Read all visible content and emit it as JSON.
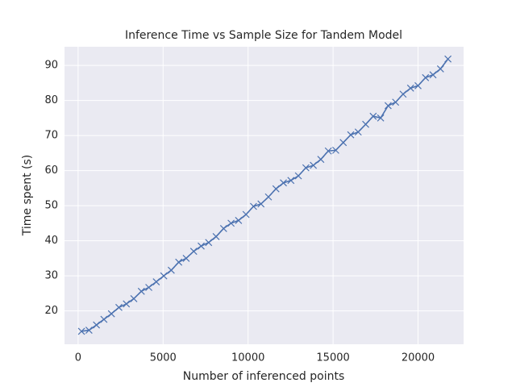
{
  "chart_data": {
    "type": "line",
    "title": "Inference Time vs Sample Size for Tandem Model",
    "xlabel": "Number of inferenced points",
    "ylabel": "Time spent (s)",
    "x": [
      200,
      640,
      1080,
      1520,
      1960,
      2400,
      2840,
      3280,
      3720,
      4160,
      4600,
      5040,
      5480,
      5920,
      6360,
      6800,
      7240,
      7680,
      8120,
      8560,
      9000,
      9440,
      9880,
      10320,
      10760,
      11200,
      11640,
      12080,
      12520,
      12960,
      13400,
      13840,
      14280,
      14720,
      15160,
      15600,
      16040,
      16480,
      16920,
      17360,
      17800,
      18240,
      18680,
      19120,
      19560,
      20000,
      20440,
      20880,
      21320,
      21760
    ],
    "series": [
      {
        "color": "#4c72b0",
        "marker": "x",
        "values": [
          14.2,
          14.5,
          16.0,
          17.6,
          19.2,
          21.0,
          22.0,
          23.5,
          25.6,
          26.7,
          28.3,
          30.0,
          31.6,
          33.9,
          35.0,
          37.0,
          38.5,
          39.5,
          41.2,
          43.5,
          45.0,
          45.8,
          47.5,
          49.8,
          50.5,
          52.5,
          54.8,
          56.5,
          57.2,
          58.5,
          60.8,
          61.5,
          63.2,
          65.6,
          65.8,
          68.0,
          70.2,
          71.0,
          73.2,
          75.5,
          75.0,
          78.5,
          79.5,
          81.8,
          83.5,
          84.2,
          86.5,
          87.3,
          89.0,
          91.8
        ]
      }
    ],
    "xlim": [
      -800,
      22680
    ],
    "xticks": [
      0,
      5000,
      10000,
      15000,
      20000
    ],
    "ylim": [
      10.5,
      95.3
    ],
    "yticks": [
      20,
      30,
      40,
      50,
      60,
      70,
      80,
      90
    ],
    "grid": true
  }
}
